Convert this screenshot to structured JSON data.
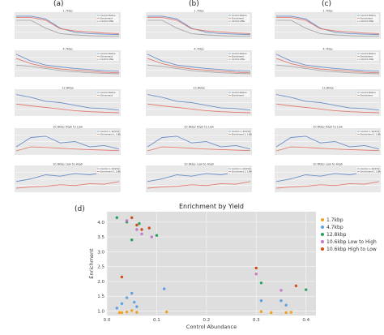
{
  "panel_labels": {
    "a": "(a)",
    "b": "(b)",
    "c": "(c)",
    "d": "(d)"
  },
  "colors": {
    "line_blue": "#6a8fc9",
    "line_red": "#e07a6e",
    "line_gray": "#a7a7a7",
    "grid_bg": "#e8e8e8",
    "scatter_bg": "#dedede",
    "s_3_7": "#f0a020",
    "s_4_7": "#5fa0e0",
    "s_12_8": "#2aa060",
    "s_10_6_lh": "#c878c8",
    "s_10_6_hl": "#d0501a"
  },
  "mini_titles": [
    "1.7kbp",
    "4.7kbp",
    "12.8kbp",
    "10.6kbp High to Low",
    "10.6kbp Low to High"
  ],
  "mini_legends": [
    [
      "Control Before",
      "Enrichment",
      "Control After"
    ],
    [
      "Control Before",
      "Enrichment",
      "Control After"
    ],
    [
      "Control Before",
      "Enrichment"
    ],
    [
      "Control 1, 20/15/1",
      "Enrichment 1, 1/8k"
    ],
    [
      "Control 1, 20/15/1",
      "Enrichment 1, 1/8k"
    ]
  ],
  "chart_data": [
    {
      "type": "scatter",
      "title": "Enrichment by Yield",
      "xlabel": "Control Abundance",
      "ylabel": "Enrichment",
      "xlim": [
        0.0,
        0.42
      ],
      "ylim": [
        0.85,
        4.35
      ],
      "xticks": [
        "0.0",
        "0.1",
        "0.2",
        "0.3",
        "0.4"
      ],
      "xtick_values": [
        0.0,
        0.1,
        0.2,
        0.3,
        0.4
      ],
      "yticks": [
        "1.0",
        "1.5",
        "2.0",
        "2.5",
        "3.0",
        "3.5",
        "4.0"
      ],
      "ytick_values": [
        1.0,
        1.5,
        2.0,
        2.5,
        3.0,
        3.5,
        4.0
      ],
      "grid": true,
      "legend_position": "right",
      "series": [
        {
          "name": "1.7kbp",
          "color_key": "s_3_7",
          "x": [
            0.025,
            0.03,
            0.04,
            0.05,
            0.06,
            0.12,
            0.31,
            0.33,
            0.36,
            0.37
          ],
          "y": [
            0.95,
            0.95,
            0.97,
            1.02,
            0.96,
            0.97,
            0.98,
            0.95,
            0.95,
            0.96
          ]
        },
        {
          "name": "4.7kbp",
          "color_key": "s_4_7",
          "x": [
            0.02,
            0.03,
            0.04,
            0.05,
            0.055,
            0.06,
            0.115,
            0.31,
            0.35,
            0.36
          ],
          "y": [
            1.1,
            1.25,
            1.45,
            1.6,
            1.3,
            1.15,
            1.75,
            1.35,
            1.35,
            1.2
          ]
        },
        {
          "name": "12.8kbp",
          "color_key": "s_12_8",
          "x": [
            0.02,
            0.04,
            0.05,
            0.065,
            0.1,
            0.31,
            0.4
          ],
          "y": [
            4.15,
            4.0,
            3.4,
            3.95,
            3.55,
            1.95,
            1.72
          ]
        },
        {
          "name": "10.6kbp Low to High",
          "color_key": "s_10_6_lh",
          "x": [
            0.04,
            0.06,
            0.07,
            0.09,
            0.3,
            0.35
          ],
          "y": [
            4.05,
            3.75,
            3.6,
            3.5,
            2.25,
            1.7
          ]
        },
        {
          "name": "10.6kbp High to Low",
          "color_key": "s_10_6_hl",
          "x": [
            0.03,
            0.05,
            0.06,
            0.07,
            0.085,
            0.3,
            0.38
          ],
          "y": [
            2.15,
            4.15,
            3.9,
            3.75,
            3.8,
            2.45,
            1.85
          ]
        }
      ]
    }
  ]
}
